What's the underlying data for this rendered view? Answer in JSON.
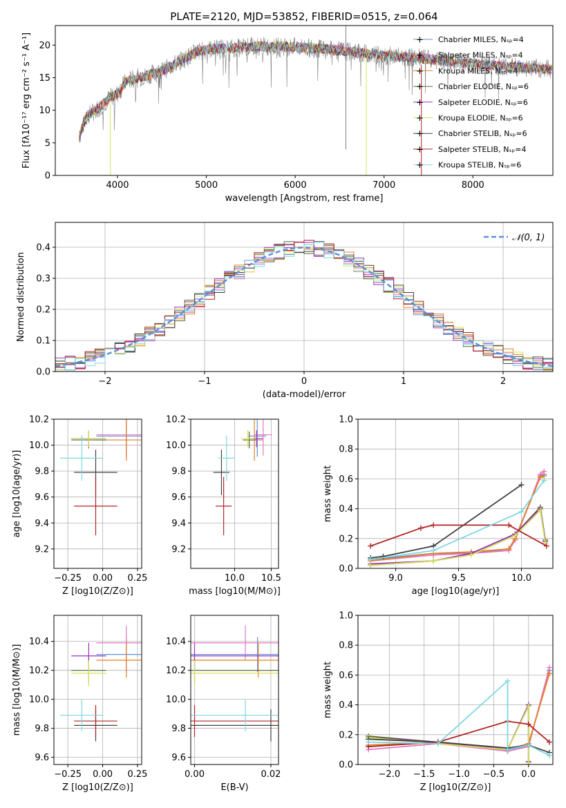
{
  "colors": {
    "Chabrier MILES": "#5b8fd8",
    "Salpeter MILES": "#e377c2",
    "Kroupa MILES": "#e67e22",
    "Chabrier ELODIE": "#556b2f",
    "Salpeter ELODIE": "#9b30c0",
    "Kroupa ELODIE": "#d4e157",
    "Chabrier STELIB": "#404040",
    "Salpeter STELIB": "#b22222",
    "Kroupa STELIB": "#7fd6e0",
    "data": "#808080",
    "gaussian": "#5b8fd8"
  },
  "legend": [
    {
      "name": "Chabrier MILES",
      "n": "4"
    },
    {
      "name": "Salpeter MILES",
      "n": "4"
    },
    {
      "name": "Kroupa MILES",
      "n": "4"
    },
    {
      "name": "Chabrier ELODIE",
      "n": "6"
    },
    {
      "name": "Salpeter ELODIE",
      "n": "6"
    },
    {
      "name": "Kroupa ELODIE",
      "n": "6"
    },
    {
      "name": "Chabrier STELIB",
      "n": "6"
    },
    {
      "name": "Salpeter STELIB",
      "n": "4"
    },
    {
      "name": "Kroupa STELIB",
      "n": "6"
    }
  ],
  "chart_data": [
    {
      "type": "line",
      "title": "PLATE=2120, MJD=53852, FIBERID=0515, z=0.064",
      "xlabel": "wavelength [Angstrom, rest frame]",
      "ylabel": "Flux [fλ10⁻¹⁷ erg cm⁻² s⁻¹ A⁻¹]",
      "xlim": [
        3300,
        8900
      ],
      "ylim": [
        0,
        23
      ],
      "xticks": [
        4000,
        5000,
        6000,
        7000,
        8000
      ],
      "yticks": [
        0,
        5,
        10,
        15,
        20
      ],
      "continuum": [
        [
          3570,
          6
        ],
        [
          3650,
          9
        ],
        [
          3800,
          10.5
        ],
        [
          3920,
          12
        ],
        [
          4000,
          12.5
        ],
        [
          4100,
          14.5
        ],
        [
          4300,
          15.2
        ],
        [
          4500,
          16
        ],
        [
          4700,
          17.5
        ],
        [
          4900,
          19
        ],
        [
          5100,
          19.5
        ],
        [
          5300,
          19.5
        ],
        [
          5600,
          19.8
        ],
        [
          6000,
          19.7
        ],
        [
          6400,
          19.3
        ],
        [
          6800,
          18.7
        ],
        [
          7100,
          18.3
        ],
        [
          7400,
          18
        ],
        [
          7700,
          17.5
        ],
        [
          8100,
          17
        ],
        [
          8500,
          16.6
        ],
        [
          8900,
          16.3
        ]
      ]
    },
    {
      "type": "line",
      "xlabel": "(data-model)/error",
      "ylabel": "Normed distribution",
      "xlim": [
        -2.5,
        2.5
      ],
      "ylim": [
        0,
        0.48
      ],
      "xticks": [
        -2,
        -1,
        0,
        1,
        2
      ],
      "yticks": [
        0.0,
        0.1,
        0.2,
        0.3,
        0.4
      ],
      "gaussian_label": "𝒩(0, 1)"
    },
    {
      "type": "scatter",
      "xlabel": "Z [log10(Z/Z⊙)]",
      "ylabel": "age [log10(age/yr)]",
      "xlim": [
        -0.35,
        0.28
      ],
      "ylim": [
        9.05,
        10.2
      ],
      "xticks": [
        -0.25,
        0.0,
        0.25
      ],
      "yticks": [
        9.2,
        9.4,
        9.6,
        9.8,
        10.0,
        10.2
      ]
    },
    {
      "type": "scatter",
      "xlabel": "mass [log10(M/M⊙)]",
      "xlim": [
        9.4,
        10.6
      ],
      "ylim": [
        9.05,
        10.2
      ],
      "xticks": [
        10.0,
        10.5
      ],
      "yticks": [
        9.2,
        9.4,
        9.6,
        9.8,
        10.0,
        10.2
      ]
    },
    {
      "type": "line",
      "xlabel": "age  [log10(age/yr)]",
      "ylabel": "mass weight",
      "xlim": [
        8.7,
        10.25
      ],
      "ylim": [
        0,
        1.0
      ],
      "xticks": [
        9.0,
        9.5,
        10.0
      ],
      "yticks": [
        0.0,
        0.2,
        0.4,
        0.6,
        0.8,
        1.0
      ]
    },
    {
      "type": "scatter",
      "xlabel": "Z [log10(Z/Z⊙)]",
      "ylabel": "mass [log10(M/M⊙)]",
      "xlim": [
        -0.35,
        0.28
      ],
      "ylim": [
        9.55,
        10.58
      ],
      "xticks": [
        -0.25,
        0.0,
        0.25
      ],
      "yticks": [
        9.6,
        9.8,
        10.0,
        10.2,
        10.4
      ]
    },
    {
      "type": "scatter",
      "xlabel": "E(B-V)",
      "xlim": [
        -0.001,
        0.022
      ],
      "ylim": [
        9.55,
        10.58
      ],
      "xticks": [
        0.0,
        0.02
      ],
      "yticks": [
        9.6,
        9.8,
        10.0,
        10.2,
        10.4
      ]
    },
    {
      "type": "line",
      "xlabel": "Z [log10(Z/Z⊙)]",
      "ylabel": "mass weight",
      "xlim": [
        -2.45,
        0.35
      ],
      "ylim": [
        0,
        1.0
      ],
      "xticks": [
        -2.0,
        -1.5,
        -1.0,
        -0.5,
        0.0
      ],
      "yticks": [
        0.0,
        0.2,
        0.4,
        0.6,
        0.8,
        1.0
      ]
    }
  ],
  "models": [
    {
      "name": "Chabrier MILES",
      "Z": [
        0.17,
        0.43
      ],
      "age": [
        10.07,
        0.32
      ],
      "mass": [
        10.31,
        0.24
      ],
      "ebv": [
        0.0165,
        0.07
      ],
      "w_age": [
        [
          8.8,
          0.06
        ],
        [
          9.3,
          0.1
        ],
        [
          9.6,
          0.1
        ],
        [
          9.9,
          0.13
        ],
        [
          9.95,
          0.2
        ],
        [
          10.15,
          0.62
        ],
        [
          10.18,
          0.63
        ]
      ],
      "w_Z": [
        [
          -2.3,
          0.12
        ],
        [
          -1.3,
          0.15
        ],
        [
          -0.3,
          0.09
        ],
        [
          0.0,
          0.13
        ],
        [
          0.3,
          0.63
        ]
      ]
    },
    {
      "name": "Salpeter MILES",
      "Z": [
        0.17,
        0.43
      ],
      "age": [
        10.08,
        0.32
      ],
      "mass": [
        10.39,
        0.24
      ],
      "ebv": [
        0.0133,
        0.07
      ],
      "w_age": [
        [
          8.8,
          0.05
        ],
        [
          9.3,
          0.09
        ],
        [
          9.6,
          0.1
        ],
        [
          9.9,
          0.12
        ],
        [
          9.95,
          0.19
        ],
        [
          10.15,
          0.63
        ],
        [
          10.18,
          0.65
        ]
      ],
      "w_Z": [
        [
          -2.3,
          0.1
        ],
        [
          -1.3,
          0.14
        ],
        [
          -0.3,
          0.09
        ],
        [
          0.0,
          0.12
        ],
        [
          0.3,
          0.65
        ]
      ]
    },
    {
      "name": "Kroupa MILES",
      "Z": [
        0.17,
        0.43
      ],
      "age": [
        10.04,
        0.32
      ],
      "mass": [
        10.27,
        0.24
      ],
      "ebv": [
        0.0167,
        0.07
      ],
      "w_age": [
        [
          8.8,
          0.05
        ],
        [
          9.3,
          0.1
        ],
        [
          9.6,
          0.11
        ],
        [
          9.9,
          0.13
        ],
        [
          9.95,
          0.2
        ],
        [
          10.15,
          0.61
        ],
        [
          10.18,
          0.62
        ]
      ],
      "w_Z": [
        [
          -2.3,
          0.13
        ],
        [
          -1.3,
          0.15
        ],
        [
          -0.3,
          0.1
        ],
        [
          0.0,
          0.14
        ],
        [
          0.3,
          0.61
        ]
      ]
    },
    {
      "name": "Chabrier ELODIE",
      "Z": [
        -0.1,
        0.25
      ],
      "age": [
        10.04,
        0.13
      ],
      "mass": [
        10.2,
        0.18
      ],
      "ebv": [
        0.0,
        0.05
      ],
      "w_age": [
        [
          8.8,
          0.02
        ],
        [
          9.3,
          0.05
        ],
        [
          9.6,
          0.1
        ],
        [
          9.95,
          0.23
        ],
        [
          10.15,
          0.41
        ],
        [
          10.19,
          0.19
        ]
      ],
      "w_Z": [
        [
          -2.3,
          0.19
        ],
        [
          -1.3,
          0.15
        ],
        [
          -0.3,
          0.1
        ],
        [
          0.0,
          0.4
        ],
        [
          0.0,
          0.02
        ]
      ]
    },
    {
      "name": "Salpeter ELODIE",
      "Z": [
        -0.1,
        0.25
      ],
      "age": [
        10.05,
        0.13
      ],
      "mass": [
        10.3,
        0.18
      ],
      "ebv": [
        0.0,
        0.05
      ],
      "w_age": [
        [
          8.8,
          0.03
        ],
        [
          9.3,
          0.05
        ],
        [
          9.6,
          0.1
        ],
        [
          9.95,
          0.23
        ],
        [
          10.15,
          0.4
        ],
        [
          10.19,
          0.18
        ]
      ],
      "w_Z": [
        [
          -2.3,
          0.18
        ],
        [
          -1.3,
          0.15
        ],
        [
          -0.3,
          0.1
        ],
        [
          0.0,
          0.4
        ],
        [
          0.0,
          0.02
        ]
      ]
    },
    {
      "name": "Kroupa ELODIE",
      "Z": [
        -0.1,
        0.25
      ],
      "age": [
        10.05,
        0.13
      ],
      "mass": [
        10.18,
        0.18
      ],
      "ebv": [
        0.0,
        0.05
      ],
      "w_age": [
        [
          8.8,
          0.02
        ],
        [
          9.3,
          0.05
        ],
        [
          9.6,
          0.09
        ],
        [
          9.95,
          0.22
        ],
        [
          10.15,
          0.39
        ],
        [
          10.19,
          0.17
        ]
      ],
      "w_Z": [
        [
          -2.3,
          0.18
        ],
        [
          -1.3,
          0.14
        ],
        [
          -0.3,
          0.1
        ],
        [
          0.0,
          0.39
        ],
        [
          0.0,
          0.01
        ]
      ]
    },
    {
      "name": "Chabrier STELIB",
      "Z": [
        -0.05,
        0.31
      ],
      "age": [
        9.79,
        0.35
      ],
      "mass": [
        9.82,
        0.22
      ],
      "ebv": [
        0.02,
        0.08
      ],
      "w_age": [
        [
          8.8,
          0.07
        ],
        [
          8.9,
          0.08
        ],
        [
          9.3,
          0.15
        ],
        [
          10.0,
          0.56
        ]
      ],
      "w_Z": [
        [
          -2.3,
          0.17
        ],
        [
          -1.3,
          0.15
        ],
        [
          -0.3,
          0.11
        ],
        [
          0.0,
          0.13
        ],
        [
          0.3,
          0.08
        ]
      ]
    },
    {
      "name": "Salpeter STELIB",
      "Z": [
        -0.05,
        0.31
      ],
      "age": [
        9.53,
        0.45
      ],
      "mass": [
        9.85,
        0.22
      ],
      "ebv": [
        0.0,
        0.08
      ],
      "w_age": [
        [
          8.8,
          0.15
        ],
        [
          9.2,
          0.27
        ],
        [
          9.3,
          0.29
        ],
        [
          9.9,
          0.29
        ],
        [
          10.2,
          0.15
        ]
      ],
      "w_Z": [
        [
          -2.3,
          0.12
        ],
        [
          -1.3,
          0.15
        ],
        [
          -0.3,
          0.29
        ],
        [
          0.0,
          0.27
        ],
        [
          0.3,
          0.15
        ]
      ]
    },
    {
      "name": "Kroupa STELIB",
      "Z": [
        -0.15,
        0.31
      ],
      "age": [
        9.9,
        0.35
      ],
      "mass": [
        9.89,
        0.22
      ],
      "ebv": [
        0.0133,
        0.07
      ],
      "w_age": [
        [
          8.8,
          0.06
        ],
        [
          9.3,
          0.12
        ],
        [
          10.0,
          0.38
        ],
        [
          10.18,
          0.59
        ]
      ],
      "w_Z": [
        [
          -2.3,
          0.15
        ],
        [
          -1.3,
          0.14
        ],
        [
          -0.3,
          0.56
        ],
        [
          -0.3,
          0.1
        ],
        [
          0.0,
          0.13
        ],
        [
          0.3,
          0.06
        ]
      ]
    }
  ]
}
